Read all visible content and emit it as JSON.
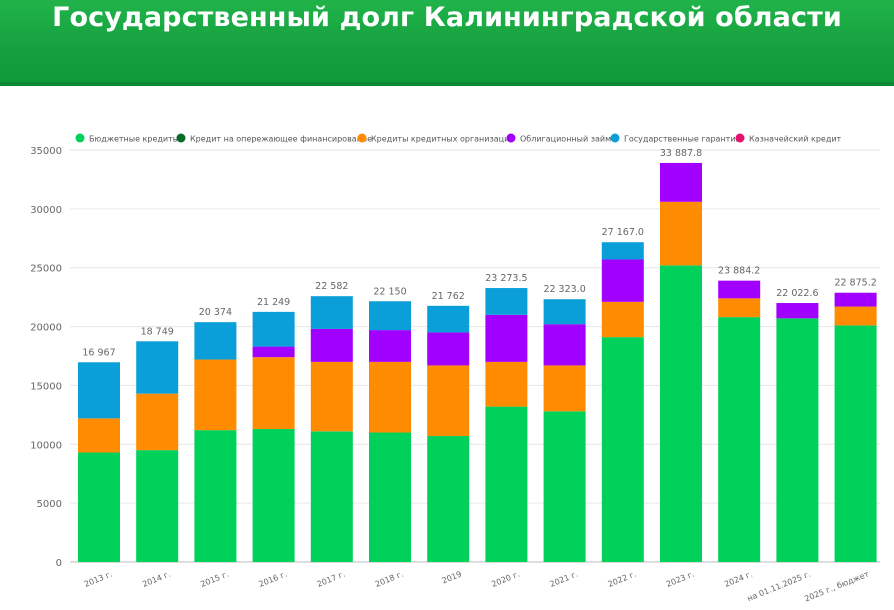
{
  "header": {
    "title": "Государственный долг Калининградской области"
  },
  "chart_data": {
    "type": "bar",
    "stacked": true,
    "title": "Государственный долг Калининградской области",
    "categories": [
      "2013 г.",
      "2014 г.",
      "2015 г.",
      "2016 г.",
      "2017 г.",
      "2018 г.",
      "2019",
      "2020 г.",
      "2021 г.",
      "2022 г.",
      "2023 г.",
      "2024 г.",
      "на 01.11.2025 г.",
      "2025 г., бюджет"
    ],
    "totals_labels": [
      "16 967",
      "18 749",
      "20 374",
      "21 249",
      "22 582",
      "22 150",
      "21 762",
      "23 273.5",
      "22 323.0",
      "27 167.0",
      "33 887.8",
      "23 884.2",
      "22 022.6",
      "22 875.2"
    ],
    "ylim": [
      0,
      35000
    ],
    "yticks": [
      0,
      5000,
      10000,
      15000,
      20000,
      25000,
      30000,
      35000
    ],
    "ytick_labels": [
      "0",
      "5000",
      "10000",
      "15000",
      "20000",
      "25000",
      "30000",
      "35000"
    ],
    "legend_position": "top-left",
    "series": [
      {
        "name": "Бюджетные кредиты",
        "color": "#00d15a",
        "values": [
          9300,
          9500,
          11200,
          11300,
          11100,
          11000,
          10700,
          13200,
          12800,
          19100,
          25200,
          20800,
          20700,
          20100
        ]
      },
      {
        "name": "Кредит на опережающее финансирование",
        "color": "#0b6a2a",
        "values": [
          0,
          0,
          0,
          0,
          0,
          0,
          0,
          0,
          0,
          0,
          0,
          0,
          0,
          0
        ]
      },
      {
        "name": "Кредиты кредитных организаций",
        "color": "#ff8c00",
        "values": [
          2900,
          4800,
          6000,
          6100,
          5900,
          6000,
          6000,
          3800,
          3900,
          3000,
          5400,
          1600,
          0,
          1600
        ]
      },
      {
        "name": "Облигационный займ",
        "color": "#a100ff",
        "values": [
          0,
          0,
          0,
          900,
          2800,
          2700,
          2800,
          4000,
          3500,
          3600,
          3300,
          1500,
          1300,
          1175
        ]
      },
      {
        "name": "Государственные гарантии",
        "color": "#0b9fd9",
        "values": [
          4767,
          4449,
          3174,
          2949,
          2782,
          2450,
          2262,
          2273,
          2123,
          1467,
          0,
          0,
          0,
          0
        ]
      },
      {
        "name": "Казначейский кредит",
        "color": "#e8106e",
        "values": [
          0,
          0,
          0,
          0,
          0,
          0,
          0,
          0,
          0,
          0,
          0,
          0,
          0,
          0
        ]
      }
    ]
  }
}
